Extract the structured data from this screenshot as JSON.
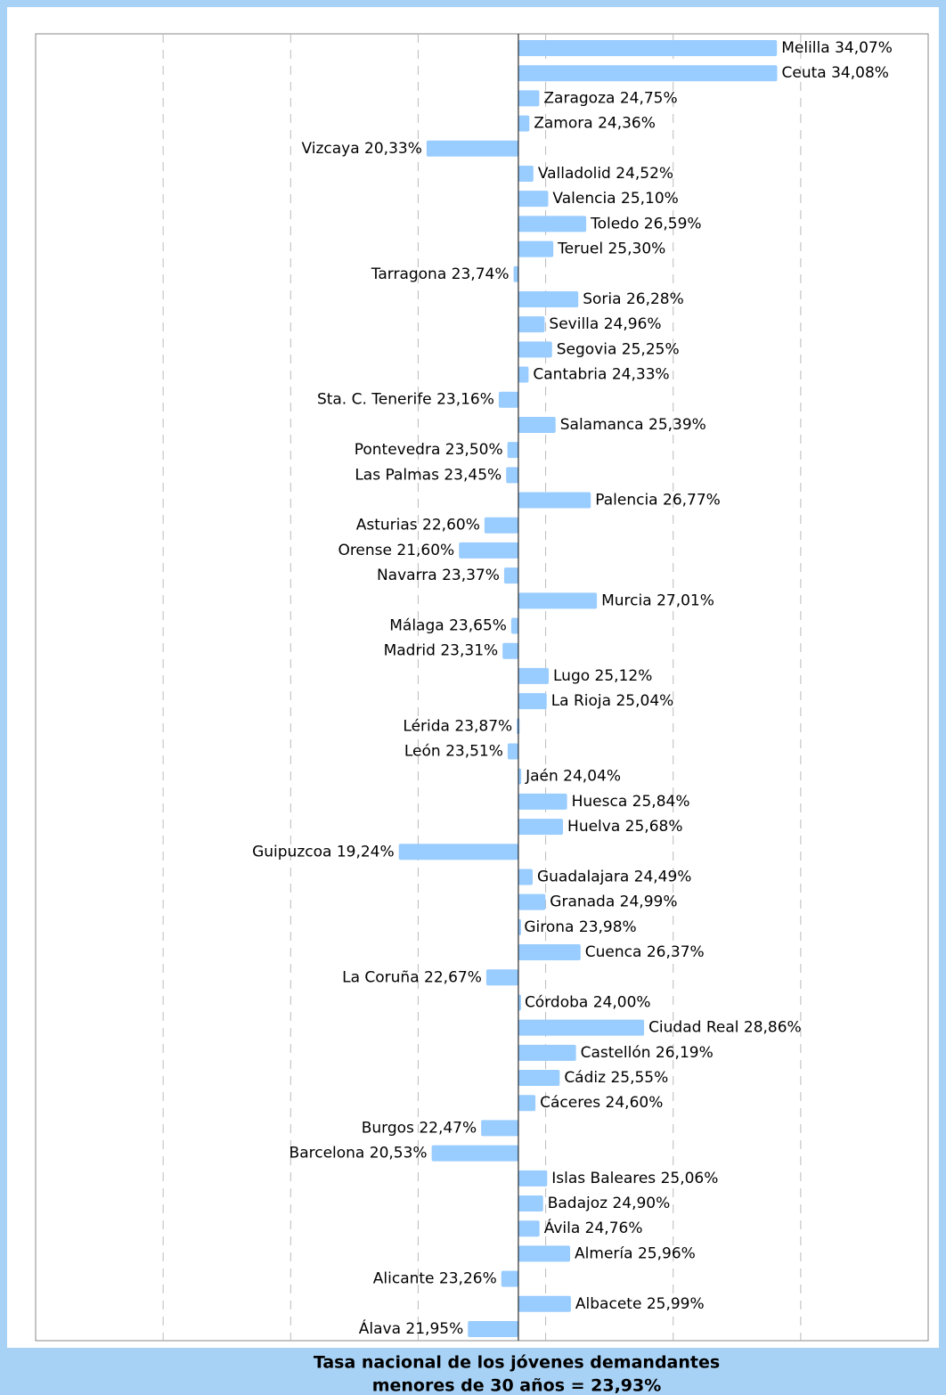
{
  "chart_data": {
    "type": "bar",
    "orientation": "horizontal",
    "color": "#99ccff",
    "baseline": 23.93,
    "footer": [
      "Tasa nacional de los jóvenes demandantes",
      "menores de 30 años = 23,93%"
    ],
    "categories": [
      "Melilla",
      "Ceuta",
      "Zaragoza",
      "Zamora",
      "Vizcaya",
      "Valladolid",
      "Valencia",
      "Toledo",
      "Teruel",
      "Tarragona",
      "Soria",
      "Sevilla",
      "Segovia",
      "Cantabria",
      "Sta. C. Tenerife",
      "Salamanca",
      "Pontevedra",
      "Las Palmas",
      "Palencia",
      "Asturias",
      "Orense",
      "Navarra",
      "Murcia",
      "Málaga",
      "Madrid",
      "Lugo",
      "La Rioja",
      "Lérida",
      "León",
      "Jaén",
      "Huesca",
      "Huelva",
      "Guipuzcoa",
      "Guadalajara",
      "Granada",
      "Girona",
      "Cuenca",
      "La Coruña",
      "Córdoba",
      "Ciudad Real",
      "Castellón",
      "Cádiz",
      "Cáceres",
      "Burgos",
      "Barcelona",
      "Islas Baleares",
      "Badajoz",
      "Ávila",
      "Almería",
      "Alicante",
      "Albacete",
      "Álava"
    ],
    "values": [
      34.07,
      34.08,
      24.75,
      24.36,
      20.33,
      24.52,
      25.1,
      26.59,
      25.3,
      23.74,
      26.28,
      24.96,
      25.25,
      24.33,
      23.16,
      25.39,
      23.5,
      23.45,
      26.77,
      22.6,
      21.6,
      23.37,
      27.01,
      23.65,
      23.31,
      25.12,
      25.04,
      23.87,
      23.51,
      24.04,
      25.84,
      25.68,
      19.24,
      24.49,
      24.99,
      23.98,
      26.37,
      22.67,
      24.0,
      28.86,
      26.19,
      25.55,
      24.6,
      22.47,
      20.53,
      25.06,
      24.9,
      24.76,
      25.96,
      23.26,
      25.99,
      21.95
    ],
    "value_labels": [
      "34,07%",
      "34,08%",
      "24,75%",
      "24,36%",
      "20,33%",
      "24,52%",
      "25,10%",
      "26,59%",
      "25,30%",
      "23,74%",
      "26,28%",
      "24,96%",
      "25,25%",
      "24,33%",
      "23,16%",
      "25,39%",
      "23,50%",
      "23,45%",
      "26,77%",
      "22,60%",
      "21,60%",
      "23,37%",
      "27,01%",
      "23,65%",
      "23,31%",
      "25,12%",
      "25,04%",
      "23,87%",
      "23,51%",
      "24,04%",
      "25,84%",
      "25,68%",
      "19,24%",
      "24,49%",
      "24,99%",
      "23,98%",
      "26,37%",
      "22,67%",
      "24,00%",
      "28,86%",
      "26,19%",
      "25,55%",
      "24,60%",
      "22,47%",
      "20,53%",
      "25,06%",
      "24,90%",
      "24,76%",
      "25,96%",
      "23,26%",
      "25,99%",
      "21,95%"
    ],
    "xlim": [
      5,
      40
    ],
    "xticks": [
      10,
      15,
      20,
      25,
      30,
      35
    ],
    "grid": true
  }
}
